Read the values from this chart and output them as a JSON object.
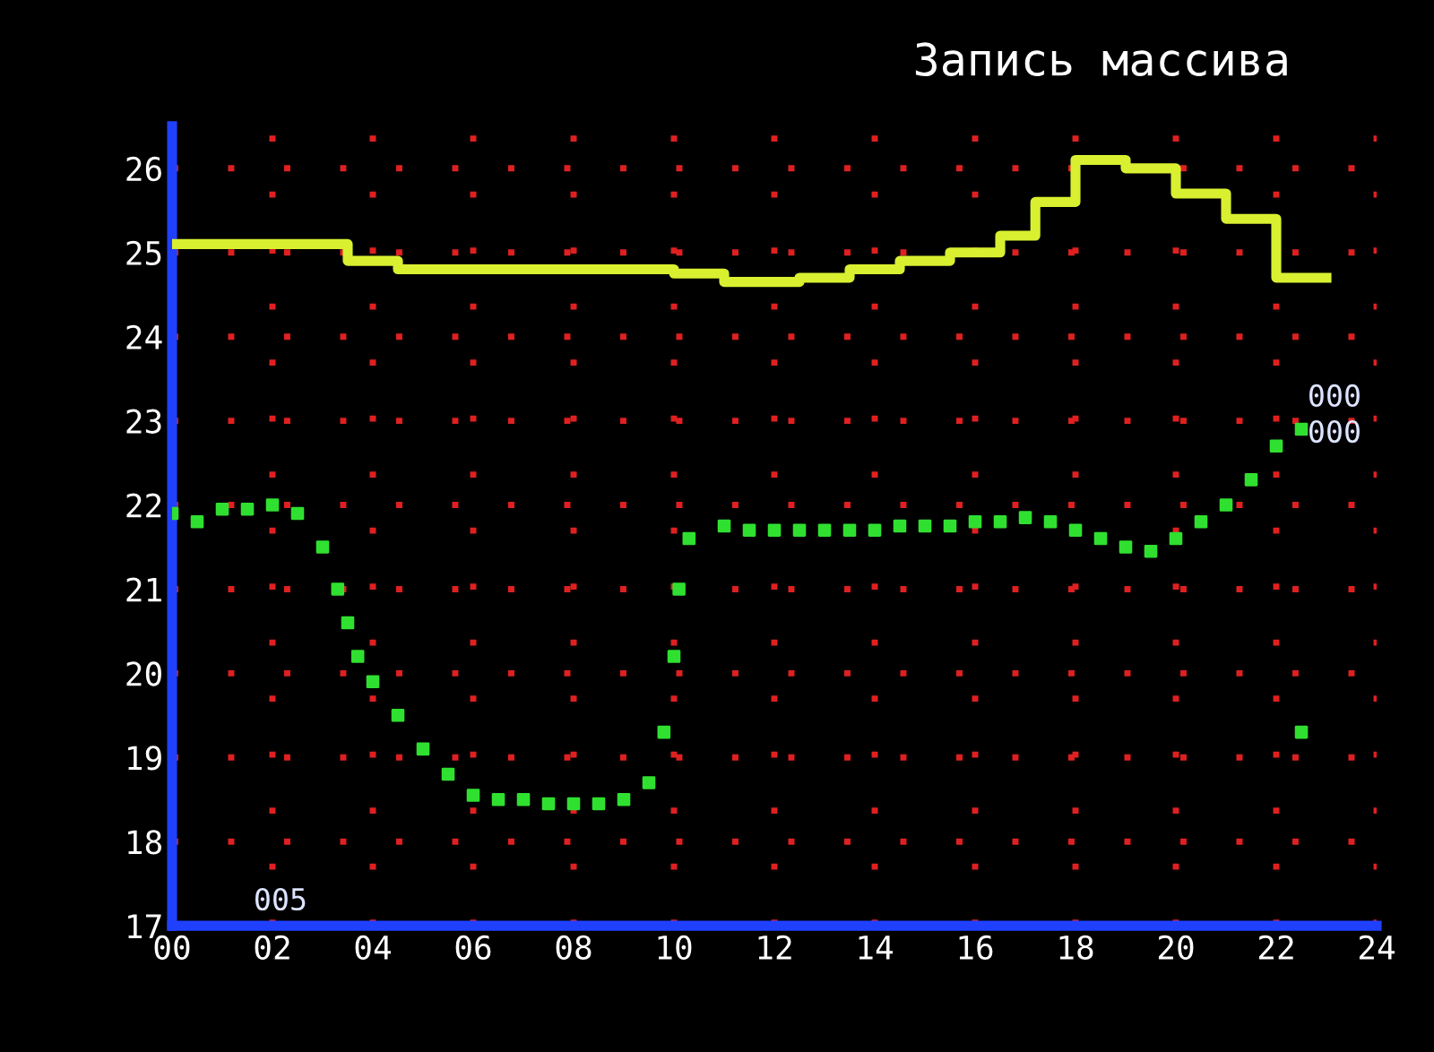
{
  "chart_data": {
    "type": "step",
    "title": "Запись массива",
    "xlim": [
      0,
      24
    ],
    "ylim": [
      17,
      26.5
    ],
    "xticks": [
      {
        "value": 0,
        "label": "00"
      },
      {
        "value": 2,
        "label": "02"
      },
      {
        "value": 4,
        "label": "04"
      },
      {
        "value": 6,
        "label": "06"
      },
      {
        "value": 8,
        "label": "08"
      },
      {
        "value": 10,
        "label": "10"
      },
      {
        "value": 12,
        "label": "12"
      },
      {
        "value": 14,
        "label": "14"
      },
      {
        "value": 16,
        "label": "16"
      },
      {
        "value": 18,
        "label": "18"
      },
      {
        "value": 20,
        "label": "20"
      },
      {
        "value": 22,
        "label": "22"
      },
      {
        "value": 24,
        "label": "24"
      }
    ],
    "yticks": [
      17,
      18,
      19,
      20,
      21,
      22,
      23,
      24,
      25,
      26
    ],
    "grid": true,
    "series": [
      {
        "color": "#d8f030",
        "x": [
          0,
          3.5,
          4.5,
          10,
          11,
          12.5,
          13.5,
          14.5,
          15.5,
          16.5,
          17.2,
          18,
          19,
          20,
          21,
          22,
          23
        ],
        "values": [
          25.1,
          24.9,
          24.8,
          24.75,
          24.65,
          24.7,
          24.8,
          24.9,
          25.0,
          25.2,
          25.6,
          26.1,
          26.0,
          25.7,
          25.4,
          24.7,
          24.7
        ]
      },
      {
        "type": "scatter",
        "color": "#30e030",
        "x": [
          0,
          0.5,
          1,
          1.5,
          2,
          2.5,
          3,
          3.3,
          3.5,
          3.7,
          4,
          4.5,
          5,
          5.5,
          6,
          6.5,
          7,
          7.5,
          8,
          8.5,
          9,
          9.5,
          9.8,
          10,
          10.1,
          10.3,
          11,
          11.5,
          12,
          12.5,
          13,
          13.5,
          14,
          14.5,
          15,
          15.5,
          16,
          16.5,
          17,
          17.5,
          18,
          18.5,
          19,
          19.5,
          20,
          20.5,
          21,
          21.5,
          22,
          22.5,
          22.5
        ],
        "values": [
          21.9,
          21.8,
          21.95,
          21.95,
          22.0,
          21.9,
          21.5,
          21.0,
          20.6,
          20.2,
          19.9,
          19.5,
          19.1,
          18.8,
          18.55,
          18.5,
          18.5,
          18.45,
          18.45,
          18.45,
          18.5,
          18.7,
          19.3,
          20.2,
          21.0,
          21.6,
          21.75,
          21.7,
          21.7,
          21.7,
          21.7,
          21.7,
          21.7,
          21.75,
          21.75,
          21.75,
          21.8,
          21.8,
          21.85,
          21.8,
          21.7,
          21.6,
          21.5,
          21.45,
          21.6,
          21.8,
          22.0,
          22.3,
          22.7,
          22.9,
          19.3
        ]
      }
    ],
    "annotations": [
      "000",
      "000",
      "005"
    ]
  }
}
